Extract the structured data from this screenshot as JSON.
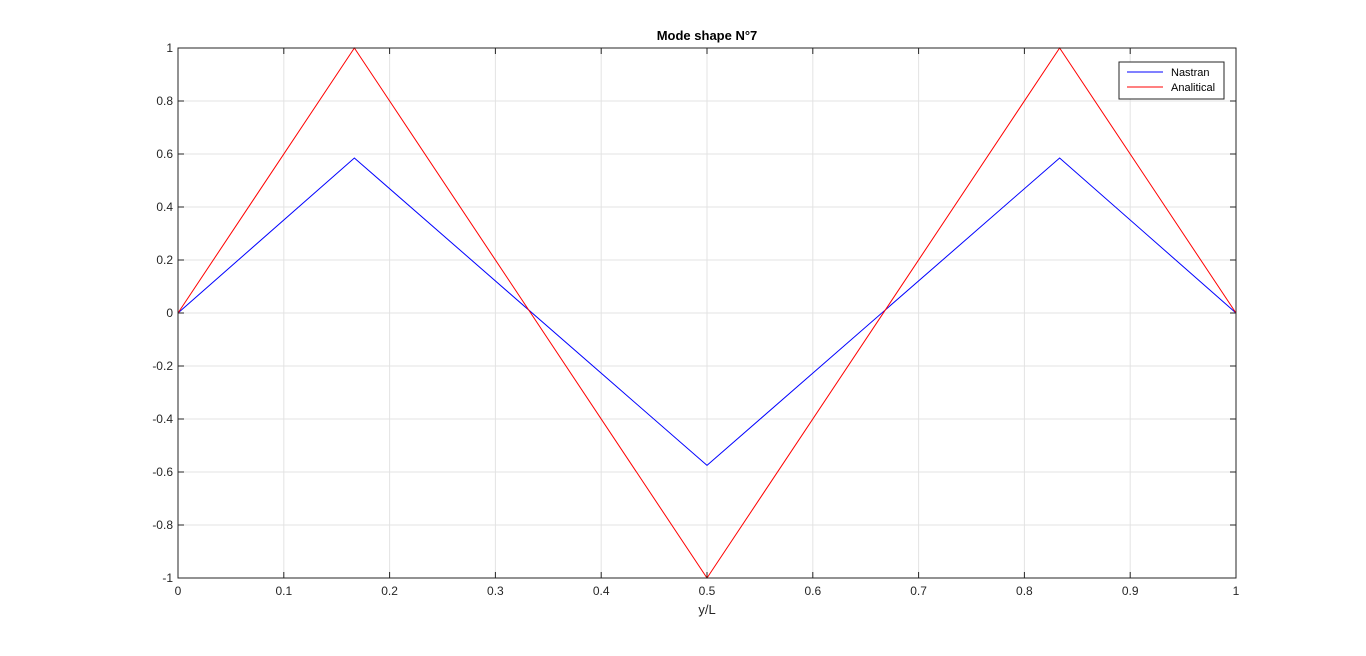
{
  "chart_data": {
    "type": "line",
    "title": "Mode shape N°7",
    "xlabel": "y/L",
    "ylabel": "",
    "xlim": [
      0,
      1
    ],
    "ylim": [
      -1,
      1
    ],
    "xticks": [
      0,
      0.1,
      0.2,
      0.3,
      0.4,
      0.5,
      0.6,
      0.7,
      0.8,
      0.9,
      1
    ],
    "xtick_labels": [
      "0",
      "0.1",
      "0.2",
      "0.3",
      "0.4",
      "0.5",
      "0.6",
      "0.7",
      "0.8",
      "0.9",
      "1"
    ],
    "yticks": [
      -1,
      -0.8,
      -0.6,
      -0.4,
      -0.2,
      0,
      0.2,
      0.4,
      0.6,
      0.8,
      1
    ],
    "ytick_labels": [
      "-1",
      "-0.8",
      "-0.6",
      "-0.4",
      "-0.2",
      "0",
      "0.2",
      "0.4",
      "0.6",
      "0.8",
      "1"
    ],
    "grid": true,
    "legend_position": "top-right",
    "series": [
      {
        "name": "Nastran",
        "color": "#0000ff",
        "x": [
          0,
          0.1667,
          0.5,
          0.8333,
          1
        ],
        "y": [
          0,
          0.585,
          -0.575,
          0.585,
          0
        ]
      },
      {
        "name": "Analitical",
        "color": "#ff0000",
        "x": [
          0,
          0.1667,
          0.5,
          0.8333,
          1
        ],
        "y": [
          0,
          1,
          -1,
          1,
          0
        ]
      }
    ]
  }
}
